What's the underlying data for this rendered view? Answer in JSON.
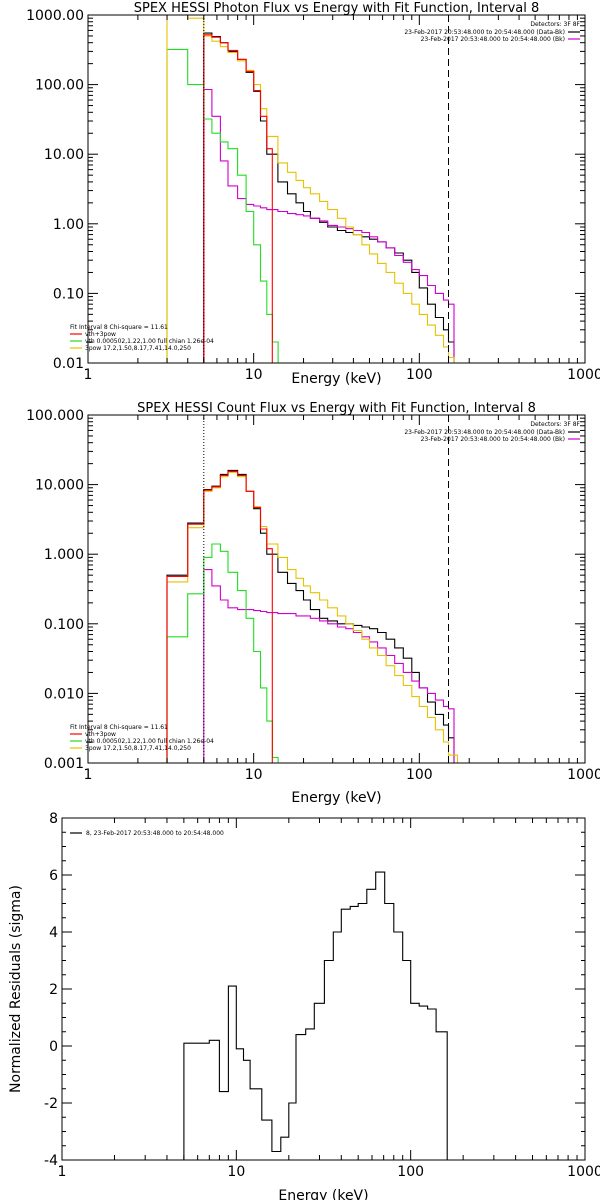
{
  "colors": {
    "black": "#000000",
    "red": "#ff0000",
    "green": "#22dd22",
    "yellow": "#e6c200",
    "magenta": "#d000d0"
  },
  "chart_data": [
    {
      "type": "line",
      "title": "SPEX HESSI Photon Flux vs Energy with Fit Function, Interval 8",
      "xlabel": "Energy (keV)",
      "ylabel": "",
      "xscale": "log",
      "yscale": "log",
      "xlim": [
        1,
        1000
      ],
      "ylim": [
        0.01,
        1000
      ],
      "xticks": [
        1,
        10,
        100,
        1000
      ],
      "xtick_labels": [
        "1",
        "10",
        "100",
        "1000"
      ],
      "yticks": [
        0.01,
        0.1,
        1,
        10,
        100,
        1000
      ],
      "ytick_labels": [
        "0.01",
        "0.10",
        "1.00",
        "10.00",
        "100.00",
        "1000.00"
      ],
      "vlines": [
        {
          "x": 5,
          "style": "dotted"
        },
        {
          "x": 150,
          "style": "dashed"
        }
      ],
      "legend_top_right": {
        "header": "Detectors: 3F 8F",
        "entries": [
          {
            "text": "23-Feb-2017 20:53:48.000 to 20:54:48.000 (Data-Bk)",
            "color": "black"
          },
          {
            "text": "23-Feb-2017 20:53:48.000 to 20:54:48.000 (Bk)",
            "color": "magenta"
          }
        ]
      },
      "legend_bottom_left": {
        "header": "Fit Interval 8   Chi-square = 11.61",
        "entries": [
          {
            "text": "vth+3pow",
            "color": "red"
          },
          {
            "text": "vth 0.000502,1.22,1.00   full chian 1.26e-04",
            "color": "green"
          },
          {
            "text": "3pow 17.2,1.50,8.17,7.41,14.0,250",
            "color": "yellow"
          }
        ]
      },
      "series": [
        {
          "color": "black",
          "x": [
            5,
            5.6,
            6.3,
            7,
            8,
            9,
            10,
            11,
            12,
            14,
            16,
            18,
            20,
            22,
            25,
            28,
            32,
            36,
            40,
            45,
            50,
            56,
            63,
            71,
            80,
            90,
            100,
            112,
            125,
            140,
            150
          ],
          "y": [
            550,
            490,
            400,
            300,
            230,
            150,
            80,
            30,
            10,
            4.0,
            2.7,
            2.0,
            1.5,
            1.2,
            1.05,
            0.9,
            0.8,
            0.75,
            0.7,
            0.65,
            0.6,
            0.55,
            0.45,
            0.38,
            0.3,
            0.2,
            0.12,
            0.07,
            0.045,
            0.03,
            0.02
          ]
        },
        {
          "color": "magenta",
          "x": [
            5,
            5.6,
            6.3,
            7,
            8,
            9,
            10,
            11,
            12,
            14,
            16,
            18,
            20,
            22,
            25,
            28,
            32,
            36,
            40,
            45,
            50,
            56,
            63,
            71,
            80,
            90,
            100,
            112,
            125,
            140,
            150
          ],
          "y": [
            85,
            35,
            8,
            3.5,
            2.3,
            1.9,
            1.8,
            1.7,
            1.6,
            1.5,
            1.4,
            1.35,
            1.3,
            1.2,
            1.1,
            0.95,
            0.9,
            0.85,
            0.8,
            0.75,
            0.65,
            0.55,
            0.45,
            0.35,
            0.28,
            0.22,
            0.18,
            0.13,
            0.1,
            0.08,
            0.07
          ]
        },
        {
          "color": "green",
          "x": [
            3,
            4,
            5,
            5.6,
            6.3,
            7,
            8,
            9,
            10,
            11,
            12,
            13
          ],
          "y": [
            320,
            100,
            32,
            20,
            15,
            12,
            5,
            1.5,
            0.5,
            0.15,
            0.05,
            0.02
          ]
        },
        {
          "color": "yellow",
          "x": [
            3,
            4,
            5,
            5.6,
            6.3,
            7,
            8,
            9,
            10,
            11,
            12,
            14,
            16,
            18,
            20,
            22,
            25,
            28,
            32,
            36,
            40,
            45,
            50,
            56,
            63,
            71,
            80,
            90,
            100,
            112,
            125,
            140,
            150
          ],
          "y": [
            1000,
            900,
            500,
            420,
            350,
            290,
            220,
            160,
            100,
            45,
            18,
            7.5,
            5.5,
            4.2,
            3.3,
            2.7,
            2.1,
            1.6,
            1.2,
            0.9,
            0.7,
            0.5,
            0.37,
            0.27,
            0.2,
            0.14,
            0.1,
            0.07,
            0.05,
            0.035,
            0.025,
            0.017,
            0.012
          ]
        },
        {
          "color": "red",
          "x": [
            5,
            5.6,
            6.3,
            7,
            8,
            9,
            10,
            11,
            12
          ],
          "y": [
            520,
            480,
            400,
            310,
            230,
            155,
            82,
            35,
            12
          ]
        }
      ]
    },
    {
      "type": "line",
      "title": "SPEX HESSI Count Flux vs Energy with Fit Function, Interval 8",
      "xlabel": "Energy (keV)",
      "ylabel": "",
      "xscale": "log",
      "yscale": "log",
      "xlim": [
        1,
        1000
      ],
      "ylim": [
        0.001,
        100
      ],
      "xticks": [
        1,
        10,
        100,
        1000
      ],
      "xtick_labels": [
        "1",
        "10",
        "100",
        "1000"
      ],
      "yticks": [
        0.001,
        0.01,
        0.1,
        1,
        10,
        100
      ],
      "ytick_labels": [
        "0.001",
        "0.010",
        "0.100",
        "1.000",
        "10.000",
        "100.000"
      ],
      "vlines": [
        {
          "x": 5,
          "style": "dotted"
        },
        {
          "x": 150,
          "style": "dashed"
        }
      ],
      "legend_top_right": {
        "header": "Detectors: 3F 8F",
        "entries": [
          {
            "text": "23-Feb-2017 20:53:48.000 to 20:54:48.000 (Data-Bk)",
            "color": "black"
          },
          {
            "text": "23-Feb-2017 20:53:48.000 to 20:54:48.000 (Bk)",
            "color": "magenta"
          }
        ]
      },
      "legend_bottom_left": {
        "header": "Fit Interval 8   Chi-square = 11.61",
        "entries": [
          {
            "text": "vth+3pow",
            "color": "red"
          },
          {
            "text": "vth 0.000502,1.22,1.00   full chian 1.26e-04",
            "color": "green"
          },
          {
            "text": "3pow 17.2,1.50,8.17,7.41,14.0,250",
            "color": "yellow"
          }
        ]
      },
      "series": [
        {
          "color": "black",
          "x": [
            3,
            4,
            5,
            5.6,
            6.3,
            7,
            8,
            9,
            10,
            11,
            12,
            14,
            16,
            18,
            20,
            22,
            25,
            28,
            32,
            36,
            40,
            45,
            50,
            56,
            63,
            71,
            80,
            90,
            100,
            112,
            125,
            140,
            150
          ],
          "y": [
            0.5,
            2.8,
            8.5,
            9.5,
            14,
            16,
            14,
            8,
            4.5,
            2.0,
            1.0,
            0.55,
            0.38,
            0.3,
            0.22,
            0.16,
            0.12,
            0.11,
            0.1,
            0.1,
            0.095,
            0.09,
            0.085,
            0.075,
            0.06,
            0.045,
            0.032,
            0.02,
            0.012,
            0.0075,
            0.005,
            0.0035,
            0.0023
          ]
        },
        {
          "color": "magenta",
          "x": [
            5,
            5.6,
            6.3,
            7,
            8,
            9,
            10,
            11,
            12,
            14,
            16,
            18,
            20,
            22,
            25,
            28,
            32,
            36,
            40,
            45,
            50,
            56,
            63,
            71,
            80,
            90,
            100,
            112,
            125,
            140,
            150
          ],
          "y": [
            0.6,
            0.35,
            0.22,
            0.17,
            0.16,
            0.16,
            0.155,
            0.15,
            0.145,
            0.14,
            0.14,
            0.13,
            0.13,
            0.12,
            0.11,
            0.1,
            0.09,
            0.085,
            0.075,
            0.065,
            0.055,
            0.045,
            0.035,
            0.027,
            0.02,
            0.015,
            0.012,
            0.01,
            0.008,
            0.0065,
            0.006
          ]
        },
        {
          "color": "green",
          "x": [
            3,
            4,
            5,
            5.6,
            6.3,
            7,
            8,
            9,
            10,
            11,
            12,
            13
          ],
          "y": [
            0.065,
            0.27,
            0.9,
            1.4,
            1.1,
            0.55,
            0.3,
            0.12,
            0.04,
            0.012,
            0.004,
            0.0012
          ]
        },
        {
          "color": "yellow",
          "x": [
            3,
            4,
            5,
            5.6,
            6.3,
            7,
            8,
            9,
            10,
            11,
            12,
            14,
            16,
            18,
            20,
            22,
            25,
            28,
            32,
            36,
            40,
            45,
            50,
            56,
            63,
            71,
            80,
            90,
            100,
            112,
            125,
            140,
            150,
            170
          ],
          "y": [
            0.4,
            2.4,
            8.0,
            9.0,
            13,
            15,
            13,
            8,
            4.8,
            2.5,
            1.4,
            0.9,
            0.6,
            0.45,
            0.35,
            0.28,
            0.22,
            0.17,
            0.13,
            0.1,
            0.08,
            0.06,
            0.045,
            0.035,
            0.025,
            0.018,
            0.013,
            0.009,
            0.0065,
            0.0045,
            0.003,
            0.002,
            0.0013,
            0.001
          ]
        },
        {
          "color": "red",
          "x": [
            3,
            4,
            5,
            5.6,
            6.3,
            7,
            8,
            9,
            10,
            11,
            12
          ],
          "y": [
            0.48,
            2.7,
            8.3,
            9.3,
            13.5,
            15.5,
            13.5,
            8,
            4.7,
            2.3,
            1.2
          ]
        }
      ]
    },
    {
      "type": "line",
      "title": "",
      "xlabel": "Energy (keV)",
      "ylabel": "Normalized Residuals (sigma)",
      "xscale": "log",
      "yscale": "linear",
      "xlim": [
        1,
        1000
      ],
      "ylim": [
        -4,
        8
      ],
      "xticks": [
        1,
        10,
        100,
        1000
      ],
      "xtick_labels": [
        "1",
        "10",
        "100",
        "1000"
      ],
      "yticks": [
        -4,
        -2,
        0,
        2,
        4,
        6,
        8
      ],
      "ytick_labels": [
        "-4",
        "-2",
        "0",
        "2",
        "4",
        "6",
        "8"
      ],
      "legend_top_left": {
        "entries": [
          {
            "text": "8, 23-Feb-2017 20:53:48.000 to 20:54:48.000",
            "color": "black"
          }
        ]
      },
      "series": [
        {
          "color": "black",
          "x": [
            5,
            7,
            8,
            9,
            10,
            11,
            12,
            14,
            16,
            18,
            20,
            22,
            25,
            28,
            32,
            36,
            40,
            45,
            50,
            56,
            63,
            71,
            80,
            90,
            100,
            112,
            125,
            140,
            150
          ],
          "y": [
            0.1,
            0.2,
            -1.6,
            2.1,
            -0.1,
            -0.5,
            -1.5,
            -2.6,
            -3.7,
            -3.2,
            -2.0,
            0.4,
            0.6,
            1.5,
            3.0,
            4.0,
            4.8,
            4.9,
            5.0,
            5.5,
            6.1,
            5.0,
            4.0,
            3.0,
            1.5,
            1.4,
            1.3,
            0.5,
            0.5
          ]
        }
      ]
    }
  ]
}
